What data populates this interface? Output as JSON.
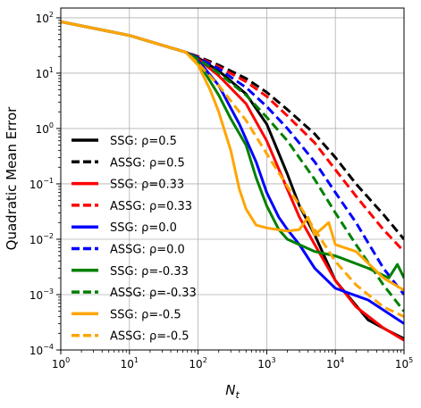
{
  "chart_data": {
    "type": "line",
    "title": "",
    "xlabel": "N",
    "xlabel_sub": "t",
    "ylabel": "Quadratic Mean Error",
    "xscale": "log",
    "yscale": "log",
    "xlim": [
      1,
      100000
    ],
    "ylim": [
      0.0001,
      150
    ],
    "grid": true,
    "legend_position": "center-left",
    "x_ticks": [
      {
        "value": 1,
        "base": "10",
        "exp": "0"
      },
      {
        "value": 10,
        "base": "10",
        "exp": "1"
      },
      {
        "value": 100,
        "base": "10",
        "exp": "2"
      },
      {
        "value": 1000,
        "base": "10",
        "exp": "3"
      },
      {
        "value": 10000,
        "base": "10",
        "exp": "4"
      },
      {
        "value": 100000,
        "base": "10",
        "exp": "5"
      }
    ],
    "y_ticks": [
      {
        "value": 0.0001,
        "base": "10",
        "exp": "−4"
      },
      {
        "value": 0.001,
        "base": "10",
        "exp": "−3"
      },
      {
        "value": 0.01,
        "base": "10",
        "exp": "−2"
      },
      {
        "value": 0.1,
        "base": "10",
        "exp": "−1"
      },
      {
        "value": 1,
        "base": "10",
        "exp": "0"
      },
      {
        "value": 10,
        "base": "10",
        "exp": "1"
      },
      {
        "value": 100,
        "base": "10",
        "exp": "2"
      }
    ],
    "series": [
      {
        "name_prefix": "SSG: ",
        "rho_label": "ρ=0.5",
        "color": "#000000",
        "dash": "solid",
        "points": [
          [
            1,
            85
          ],
          [
            10,
            48
          ],
          [
            66,
            24
          ],
          [
            100,
            19
          ],
          [
            200,
            11
          ],
          [
            500,
            4.2
          ],
          [
            1000,
            1.2
          ],
          [
            2000,
            0.15
          ],
          [
            3000,
            0.04
          ],
          [
            5000,
            0.012
          ],
          [
            10000,
            0.0018
          ],
          [
            30000,
            0.00035
          ],
          [
            60000,
            0.00022
          ],
          [
            100000,
            0.00016
          ]
        ]
      },
      {
        "name_prefix": "ASSG: ",
        "rho_label": "ρ=0.5",
        "color": "#000000",
        "dash": "dashed",
        "points": [
          [
            1,
            85
          ],
          [
            10,
            48
          ],
          [
            66,
            24
          ],
          [
            100,
            20
          ],
          [
            200,
            14
          ],
          [
            500,
            8
          ],
          [
            1000,
            4.5
          ],
          [
            2000,
            2.2
          ],
          [
            5000,
            0.8
          ],
          [
            10000,
            0.3
          ],
          [
            20000,
            0.1
          ],
          [
            50000,
            0.028
          ],
          [
            100000,
            0.01
          ]
        ]
      },
      {
        "name_prefix": "SSG: ",
        "rho_label": "ρ=0.33",
        "color": "#ff0000",
        "dash": "solid",
        "points": [
          [
            1,
            85
          ],
          [
            10,
            48
          ],
          [
            66,
            24
          ],
          [
            100,
            18
          ],
          [
            200,
            9
          ],
          [
            500,
            2.8
          ],
          [
            1000,
            0.6
          ],
          [
            2000,
            0.08
          ],
          [
            3000,
            0.025
          ],
          [
            5000,
            0.008
          ],
          [
            10000,
            0.0018
          ],
          [
            20000,
            0.0006
          ],
          [
            50000,
            0.00025
          ],
          [
            100000,
            0.00015
          ]
        ]
      },
      {
        "name_prefix": "ASSG: ",
        "rho_label": "ρ=0.33",
        "color": "#ff0000",
        "dash": "dashed",
        "points": [
          [
            1,
            85
          ],
          [
            10,
            48
          ],
          [
            66,
            24
          ],
          [
            100,
            19.5
          ],
          [
            200,
            13
          ],
          [
            500,
            7
          ],
          [
            1000,
            3.8
          ],
          [
            2000,
            1.7
          ],
          [
            5000,
            0.55
          ],
          [
            10000,
            0.18
          ],
          [
            20000,
            0.06
          ],
          [
            50000,
            0.015
          ],
          [
            100000,
            0.006
          ]
        ]
      },
      {
        "name_prefix": "SSG: ",
        "rho_label": "ρ=0.0",
        "color": "#0000ff",
        "dash": "solid",
        "points": [
          [
            1,
            85
          ],
          [
            10,
            48
          ],
          [
            66,
            24
          ],
          [
            100,
            17
          ],
          [
            200,
            6
          ],
          [
            400,
            1.2
          ],
          [
            700,
            0.25
          ],
          [
            1000,
            0.07
          ],
          [
            1500,
            0.025
          ],
          [
            2000,
            0.015
          ],
          [
            3000,
            0.008
          ],
          [
            5000,
            0.003
          ],
          [
            10000,
            0.0013
          ],
          [
            30000,
            0.0008
          ],
          [
            100000,
            0.0003
          ]
        ]
      },
      {
        "name_prefix": "ASSG: ",
        "rho_label": "ρ=0.0",
        "color": "#0000ff",
        "dash": "dashed",
        "points": [
          [
            1,
            85
          ],
          [
            10,
            48
          ],
          [
            66,
            24
          ],
          [
            100,
            19
          ],
          [
            200,
            12
          ],
          [
            500,
            5.5
          ],
          [
            1000,
            2.5
          ],
          [
            2000,
            1
          ],
          [
            5000,
            0.25
          ],
          [
            10000,
            0.07
          ],
          [
            20000,
            0.02
          ],
          [
            50000,
            0.003
          ],
          [
            100000,
            0.001
          ]
        ]
      },
      {
        "name_prefix": "SSG: ",
        "rho_label": "ρ=-0.33",
        "color": "#008000",
        "dash": "solid",
        "points": [
          [
            1,
            85
          ],
          [
            10,
            48
          ],
          [
            66,
            24
          ],
          [
            100,
            16
          ],
          [
            200,
            4
          ],
          [
            300,
            1.5
          ],
          [
            500,
            0.5
          ],
          [
            700,
            0.13
          ],
          [
            1000,
            0.04
          ],
          [
            1500,
            0.015
          ],
          [
            2000,
            0.01
          ],
          [
            5000,
            0.006
          ],
          [
            10000,
            0.005
          ],
          [
            30000,
            0.003
          ],
          [
            60000,
            0.002
          ],
          [
            80000,
            0.0035
          ],
          [
            100000,
            0.002
          ]
        ]
      },
      {
        "name_prefix": "ASSG: ",
        "rho_label": "ρ=-0.33",
        "color": "#008000",
        "dash": "dashed",
        "points": [
          [
            1,
            85
          ],
          [
            10,
            48
          ],
          [
            66,
            24
          ],
          [
            100,
            18
          ],
          [
            200,
            10
          ],
          [
            500,
            4
          ],
          [
            1000,
            1.6
          ],
          [
            2000,
            0.6
          ],
          [
            5000,
            0.12
          ],
          [
            10000,
            0.03
          ],
          [
            20000,
            0.008
          ],
          [
            50000,
            0.0015
          ],
          [
            100000,
            0.0005
          ]
        ]
      },
      {
        "name_prefix": "SSG: ",
        "rho_label": "ρ=-0.5",
        "color": "#ffa500",
        "dash": "solid",
        "points": [
          [
            1,
            85
          ],
          [
            10,
            48
          ],
          [
            66,
            24
          ],
          [
            100,
            14
          ],
          [
            150,
            5
          ],
          [
            200,
            2
          ],
          [
            300,
            0.4
          ],
          [
            400,
            0.08
          ],
          [
            500,
            0.035
          ],
          [
            700,
            0.018
          ],
          [
            1000,
            0.016
          ],
          [
            2000,
            0.014
          ],
          [
            3000,
            0.015
          ],
          [
            4000,
            0.025
          ],
          [
            5000,
            0.012
          ],
          [
            8000,
            0.02
          ],
          [
            10000,
            0.008
          ],
          [
            20000,
            0.006
          ],
          [
            50000,
            0.002
          ],
          [
            100000,
            0.0012
          ]
        ]
      },
      {
        "name_prefix": "ASSG: ",
        "rho_label": "ρ=-0.5",
        "color": "#ffa500",
        "dash": "dashed",
        "points": [
          [
            1,
            85
          ],
          [
            10,
            48
          ],
          [
            66,
            24
          ],
          [
            100,
            15
          ],
          [
            200,
            6
          ],
          [
            500,
            1.4
          ],
          [
            1000,
            0.35
          ],
          [
            2000,
            0.09
          ],
          [
            5000,
            0.015
          ],
          [
            10000,
            0.004
          ],
          [
            20000,
            0.0015
          ],
          [
            50000,
            0.0006
          ],
          [
            100000,
            0.0004
          ]
        ]
      }
    ]
  }
}
